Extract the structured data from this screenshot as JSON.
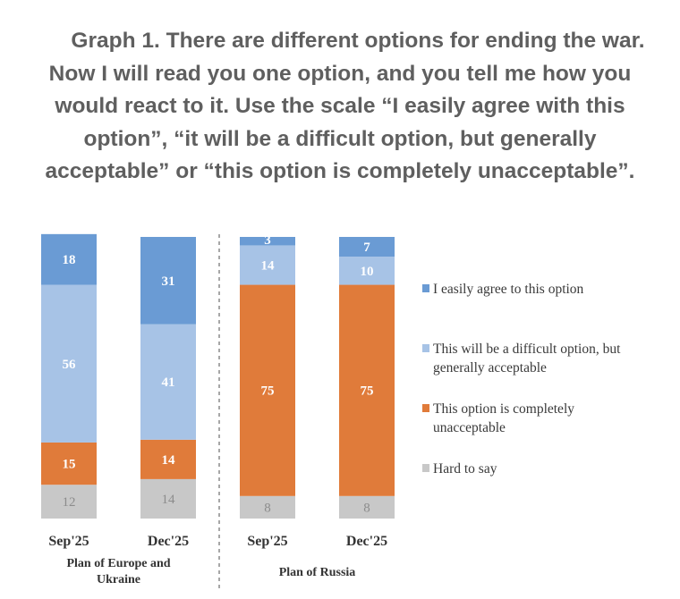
{
  "title_lines": [
    "Graph 1. There are different options for ending the war.",
    "Now I will read you one option, and you tell me how you",
    "would react to it. Use the scale “I easily agree with this",
    "option”, “it will be a difficult option, but generally",
    "acceptable” or “this option is completely unacceptable”."
  ],
  "chart_data": {
    "type": "bar",
    "stacked": true,
    "percent_scale": [
      0,
      100
    ],
    "groups": [
      {
        "label": "Plan of Europe and Ukraine",
        "label_lines": [
          "Plan of Europe and",
          "Ukraine"
        ]
      },
      {
        "label": "Plan of Russia",
        "label_lines": [
          "Plan of Russia"
        ]
      }
    ],
    "categories": [
      "Sep'25",
      "Dec'25",
      "Sep'25",
      "Dec'25"
    ],
    "category_group": [
      0,
      0,
      1,
      1
    ],
    "series": [
      {
        "name": "Hard to say",
        "legend_lines": [
          "Hard to say"
        ],
        "color": "#c8c8c8",
        "label_color": "#8c8c8c",
        "values": [
          12,
          14,
          8,
          8
        ]
      },
      {
        "name": "This option is completely unacceptable",
        "legend_lines": [
          "This option is completely",
          "unacceptable"
        ],
        "color": "#e07b3a",
        "label_color": "#ffffff",
        "values": [
          15,
          14,
          75,
          75
        ]
      },
      {
        "name": "This will be a difficult option, but generally acceptable",
        "legend_lines": [
          "This will be a difficult option, but",
          "generally acceptable"
        ],
        "color": "#a7c3e6",
        "label_color": "#ffffff",
        "values": [
          56,
          41,
          14,
          10
        ]
      },
      {
        "name": "I easily agree to this option",
        "legend_lines": [
          "I easily agree to this option"
        ],
        "color": "#6a9bd4",
        "label_color": "#ffffff",
        "values": [
          18,
          31,
          3,
          7
        ]
      }
    ],
    "legend_order": [
      3,
      2,
      1,
      0
    ],
    "legend_position": "right",
    "grid": false
  }
}
